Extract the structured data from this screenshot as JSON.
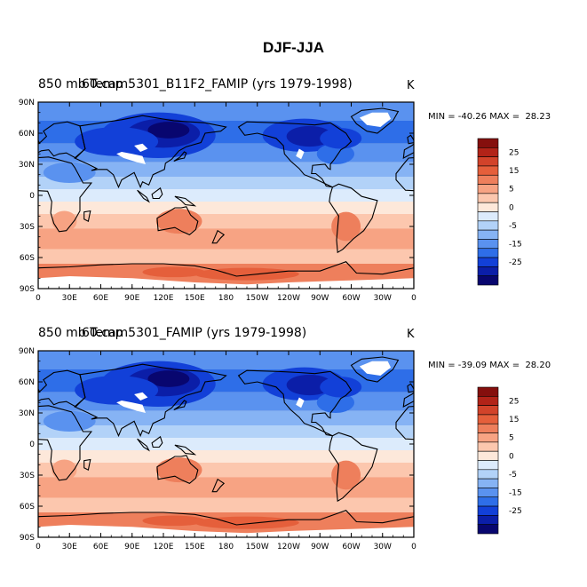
{
  "title": "DJF-JJA",
  "colors": {
    "contour_fills": [
      "#08066f",
      "#0b1ea8",
      "#1240d8",
      "#2e6ee8",
      "#5a92ef",
      "#86b3f4",
      "#b2d2f8",
      "#dcebfc",
      "#fde8da",
      "#fcc7ae",
      "#f7a383",
      "#ee7f5c",
      "#e55f3b",
      "#d2432a",
      "#b22318",
      "#850f0d"
    ],
    "map_background": "#fde8da",
    "missing": "#ffffff",
    "coastline": "#000000"
  },
  "chart_data": [
    {
      "type": "heatmap",
      "title_left": "850 mb Temp",
      "title_center": "60.cam5301_B11F2_FAMIP (yrs 1979-1998)",
      "units": "K",
      "min": -40.26,
      "max": 28.23,
      "minmax_text": "MIN = -40.26 MAX =  28.23",
      "x_ticks": [
        "0",
        "30E",
        "60E",
        "90E",
        "120E",
        "150E",
        "180",
        "150W",
        "120W",
        "90W",
        "60W",
        "30W",
        "0"
      ],
      "y_ticks": [
        "90N",
        "60N",
        "30N",
        "0",
        "30S",
        "60S",
        "90S"
      ],
      "colorbar_labels": [
        "25",
        "15",
        "5",
        "0",
        "-5",
        "-15",
        "-25"
      ]
    },
    {
      "type": "heatmap",
      "title_left": "850 mb Temp",
      "title_center": "60.cam5301_FAMIP (yrs 1979-1998)",
      "units": "K",
      "min": -39.09,
      "max": 28.2,
      "minmax_text": "MIN = -39.09 MAX =  28.20",
      "x_ticks": [
        "0",
        "30E",
        "60E",
        "90E",
        "120E",
        "150E",
        "180",
        "150W",
        "120W",
        "90W",
        "60W",
        "30W",
        "0"
      ],
      "y_ticks": [
        "90N",
        "60N",
        "30N",
        "0",
        "30S",
        "60S",
        "90S"
      ],
      "colorbar_labels": [
        "25",
        "15",
        "5",
        "0",
        "-5",
        "-15",
        "-25"
      ]
    }
  ]
}
